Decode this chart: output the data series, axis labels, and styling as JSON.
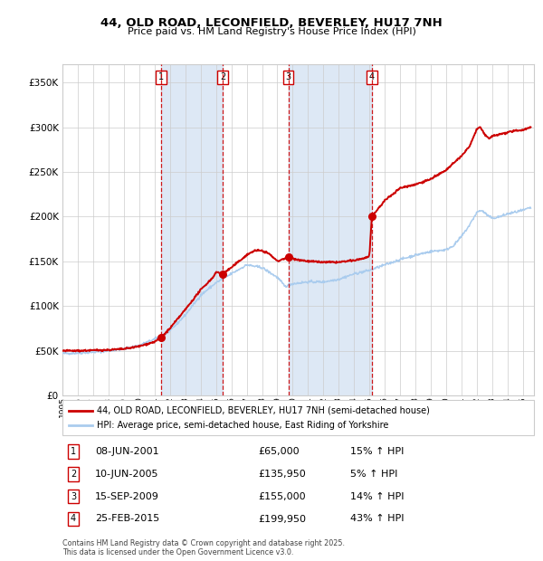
{
  "title": "44, OLD ROAD, LECONFIELD, BEVERLEY, HU17 7NH",
  "subtitle": "Price paid vs. HM Land Registry's House Price Index (HPI)",
  "footer": "Contains HM Land Registry data © Crown copyright and database right 2025.\nThis data is licensed under the Open Government Licence v3.0.",
  "legend_red": "44, OLD ROAD, LECONFIELD, BEVERLEY, HU17 7NH (semi-detached house)",
  "legend_blue": "HPI: Average price, semi-detached house, East Riding of Yorkshire",
  "sales": [
    {
      "num": 1,
      "date": "08-JUN-2001",
      "price": 65000,
      "pct": "15% ↑ HPI",
      "year": 2001.44
    },
    {
      "num": 2,
      "date": "10-JUN-2005",
      "price": 135950,
      "pct": "5% ↑ HPI",
      "year": 2005.44
    },
    {
      "num": 3,
      "date": "15-SEP-2009",
      "price": 155000,
      "pct": "14% ↑ HPI",
      "year": 2009.71
    },
    {
      "num": 4,
      "date": "25-FEB-2015",
      "price": 199950,
      "pct": "43% ↑ HPI",
      "year": 2015.15
    }
  ],
  "ylim": [
    0,
    370000
  ],
  "xlim_start": 1995.0,
  "xlim_end": 2025.7,
  "background_color": "#ffffff",
  "grid_color": "#cccccc",
  "red_color": "#cc0000",
  "blue_color": "#aaccee",
  "shade_color": "#dde8f5",
  "yticks": [
    0,
    50000,
    100000,
    150000,
    200000,
    250000,
    300000,
    350000
  ],
  "xticks": [
    1995,
    1996,
    1997,
    1998,
    1999,
    2000,
    2001,
    2002,
    2003,
    2004,
    2005,
    2006,
    2007,
    2008,
    2009,
    2010,
    2011,
    2012,
    2013,
    2014,
    2015,
    2016,
    2017,
    2018,
    2019,
    2020,
    2021,
    2022,
    2023,
    2024,
    2025
  ]
}
